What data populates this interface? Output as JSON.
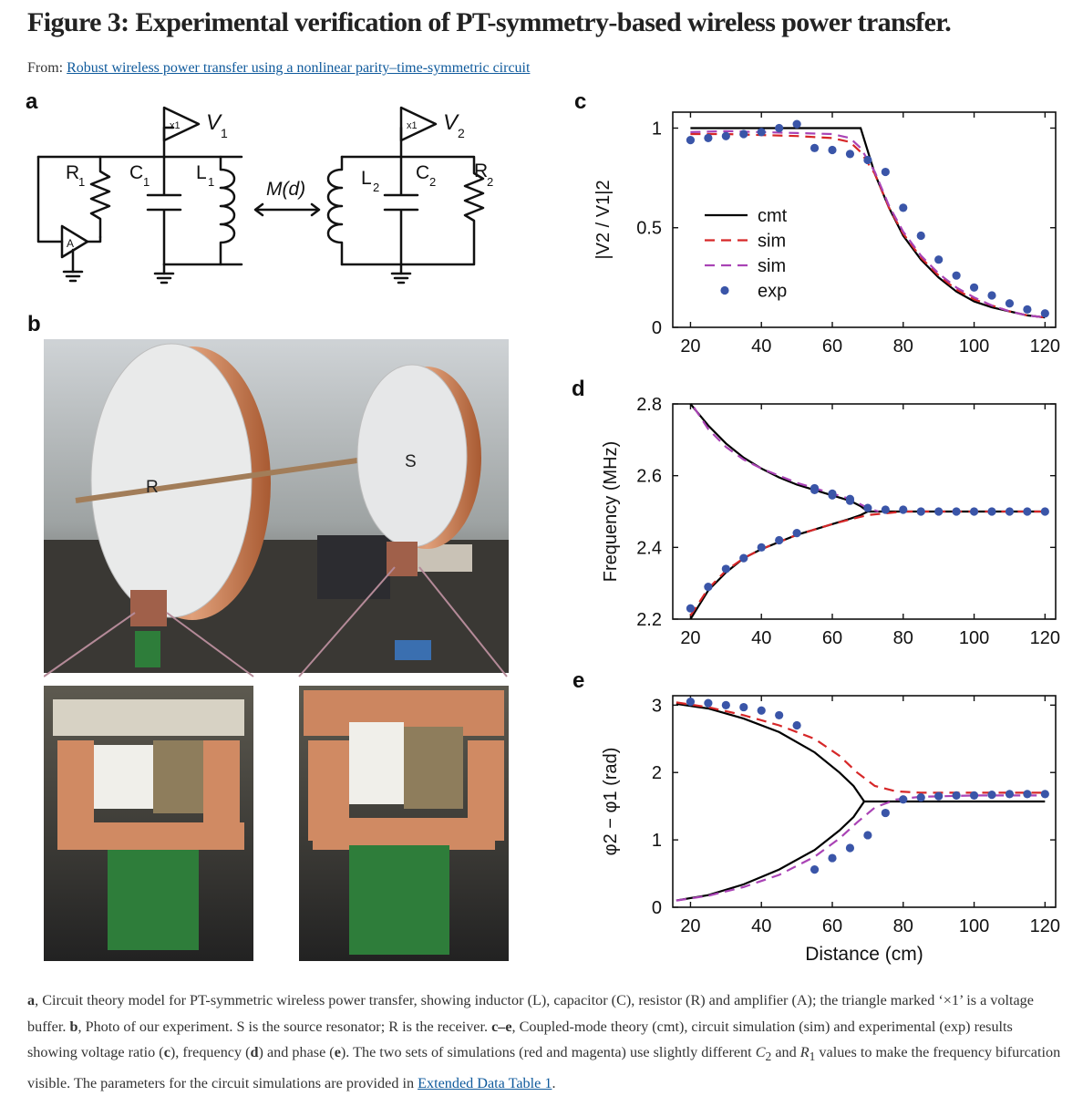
{
  "title": "Figure 3: Experimental verification of PT-symmetry-based wireless power transfer.",
  "from": {
    "prefix": "From:",
    "link": "Robust wireless power transfer using a nonlinear parity–time-symmetric circuit"
  },
  "panels": {
    "a": "a",
    "b": "b",
    "c": "c",
    "d": "d",
    "e": "e"
  },
  "circuit": {
    "v1": "V",
    "v1_sub": "1",
    "v2": "V",
    "v2_sub": "2",
    "buffer": "x1",
    "amp": "A",
    "r1": "R",
    "r1_sub": "1",
    "c1": "C",
    "c1_sub": "1",
    "l1": "L",
    "l1_sub": "1",
    "l2": "L",
    "l2_sub": "2",
    "c2": "C",
    "c2_sub": "2",
    "r2": "R",
    "r2_sub": "2",
    "coupling": "M(d)"
  },
  "photo": {
    "receiver_label": "R",
    "source_label": "S"
  },
  "chart_data": [
    {
      "panel": "c",
      "type": "line",
      "ylabel": "|V2 / V1|2",
      "xlim": [
        15,
        123
      ],
      "ylim": [
        0,
        1.08
      ],
      "xticks": [
        20,
        40,
        60,
        80,
        100,
        120
      ],
      "yticks": [
        0,
        0.5,
        1
      ],
      "ytick_labels": [
        "0",
        "0.5",
        "1"
      ],
      "legend": [
        "cmt",
        "sim",
        "sim",
        "exp"
      ],
      "legend_position": "center-left",
      "series": [
        {
          "name": "cmt",
          "style": "solid",
          "color": "#000000",
          "x": [
            20,
            30,
            40,
            50,
            60,
            68,
            72,
            76,
            80,
            85,
            90,
            95,
            100,
            105,
            110,
            115,
            120
          ],
          "y": [
            1,
            1,
            1,
            1,
            1,
            1,
            0.77,
            0.6,
            0.46,
            0.34,
            0.25,
            0.18,
            0.13,
            0.1,
            0.08,
            0.06,
            0.05
          ]
        },
        {
          "name": "sim",
          "style": "dashed",
          "color": "#d62728",
          "x": [
            20,
            30,
            40,
            50,
            60,
            65,
            68,
            72,
            76,
            80,
            85,
            90,
            95,
            100,
            105,
            110,
            115,
            120
          ],
          "y": [
            0.97,
            0.97,
            0.965,
            0.96,
            0.95,
            0.93,
            0.88,
            0.77,
            0.6,
            0.47,
            0.35,
            0.26,
            0.19,
            0.14,
            0.11,
            0.08,
            0.06,
            0.05
          ]
        },
        {
          "name": "sim",
          "style": "dashed",
          "color": "#a943b5",
          "x": [
            20,
            30,
            40,
            50,
            60,
            65,
            68,
            72,
            76,
            80,
            85,
            90,
            95,
            100,
            105,
            110,
            115,
            120
          ],
          "y": [
            0.98,
            0.985,
            0.98,
            0.975,
            0.97,
            0.95,
            0.9,
            0.78,
            0.61,
            0.48,
            0.36,
            0.27,
            0.2,
            0.15,
            0.11,
            0.08,
            0.06,
            0.05
          ]
        },
        {
          "name": "exp",
          "style": "dots",
          "color": "#3a55a8",
          "x": [
            20,
            25,
            30,
            35,
            40,
            45,
            50,
            55,
            60,
            65,
            70,
            75,
            80,
            85,
            90,
            95,
            100,
            105,
            110,
            115,
            120
          ],
          "y": [
            0.94,
            0.95,
            0.96,
            0.97,
            0.98,
            1.0,
            1.02,
            0.9,
            0.89,
            0.87,
            0.84,
            0.78,
            0.6,
            0.46,
            0.34,
            0.26,
            0.2,
            0.16,
            0.12,
            0.09,
            0.07
          ]
        }
      ]
    },
    {
      "panel": "d",
      "type": "line",
      "ylabel": "Frequency (MHz)",
      "xlim": [
        15,
        123
      ],
      "ylim": [
        2.2,
        2.8
      ],
      "xticks": [
        20,
        40,
        60,
        80,
        100,
        120
      ],
      "yticks": [
        2.2,
        2.4,
        2.6,
        2.8
      ],
      "ytick_labels": [
        "2.2",
        "2.4",
        "2.6",
        "2.8"
      ],
      "series": [
        {
          "name": "cmt-upper",
          "style": "solid",
          "color": "#000000",
          "x": [
            20,
            25,
            30,
            35,
            40,
            45,
            50,
            55,
            60,
            65,
            68,
            70
          ],
          "y": [
            2.8,
            2.74,
            2.69,
            2.65,
            2.62,
            2.595,
            2.575,
            2.56,
            2.545,
            2.53,
            2.515,
            2.5
          ]
        },
        {
          "name": "cmt-lower",
          "style": "solid",
          "color": "#000000",
          "x": [
            20,
            25,
            30,
            35,
            40,
            45,
            50,
            55,
            60,
            65,
            68,
            70,
            80,
            90,
            100,
            110,
            120
          ],
          "y": [
            2.2,
            2.28,
            2.33,
            2.37,
            2.395,
            2.415,
            2.435,
            2.45,
            2.465,
            2.48,
            2.49,
            2.5,
            2.5,
            2.5,
            2.5,
            2.5,
            2.5
          ]
        },
        {
          "name": "sim-upper",
          "style": "dashed",
          "color": "#a943b5",
          "x": [
            21,
            25,
            30,
            35,
            40,
            45,
            50,
            55,
            60,
            65,
            70,
            73
          ],
          "y": [
            2.79,
            2.73,
            2.68,
            2.645,
            2.62,
            2.6,
            2.58,
            2.565,
            2.55,
            2.535,
            2.51,
            2.5
          ]
        },
        {
          "name": "sim-lower",
          "style": "dashed",
          "color": "#d62728",
          "x": [
            20,
            25,
            30,
            35,
            40,
            45,
            50,
            55,
            60,
            65,
            70,
            75,
            80,
            90,
            100,
            110,
            120
          ],
          "y": [
            2.21,
            2.285,
            2.335,
            2.37,
            2.395,
            2.415,
            2.435,
            2.45,
            2.465,
            2.478,
            2.49,
            2.495,
            2.5,
            2.5,
            2.5,
            2.5,
            2.5
          ]
        },
        {
          "name": "exp",
          "style": "dots",
          "color": "#3a55a8",
          "x": [
            20,
            25,
            30,
            35,
            40,
            45,
            50,
            55,
            60,
            65,
            70,
            75,
            80,
            85,
            90,
            95,
            100,
            105,
            110,
            115,
            120,
            55,
            60,
            65
          ],
          "y": [
            2.23,
            2.29,
            2.34,
            2.37,
            2.4,
            2.42,
            2.44,
            2.56,
            2.545,
            2.53,
            2.51,
            2.505,
            2.505,
            2.5,
            2.5,
            2.5,
            2.5,
            2.5,
            2.5,
            2.5,
            2.5,
            2.565,
            2.55,
            2.535
          ]
        }
      ]
    },
    {
      "panel": "e",
      "type": "line",
      "ylabel": "φ2 − φ1 (rad)",
      "xlabel": "Distance (cm)",
      "xlim": [
        15,
        123
      ],
      "ylim": [
        0,
        3.14
      ],
      "xticks": [
        20,
        40,
        60,
        80,
        100,
        120
      ],
      "yticks": [
        0,
        1,
        2,
        3
      ],
      "ytick_labels": [
        "0",
        "1",
        "2",
        "3"
      ],
      "series": [
        {
          "name": "cmt-upper",
          "style": "solid",
          "color": "#000000",
          "x": [
            16,
            25,
            35,
            45,
            55,
            62,
            66,
            69
          ],
          "y": [
            3.02,
            2.95,
            2.8,
            2.6,
            2.3,
            2.0,
            1.8,
            1.57
          ]
        },
        {
          "name": "cmt-lower",
          "style": "solid",
          "color": "#000000",
          "x": [
            16,
            25,
            35,
            45,
            55,
            62,
            66,
            69,
            80,
            100,
            120
          ],
          "y": [
            0.1,
            0.18,
            0.34,
            0.56,
            0.85,
            1.14,
            1.34,
            1.57,
            1.57,
            1.57,
            1.57
          ]
        },
        {
          "name": "sim-upper",
          "style": "dashed",
          "color": "#d62728",
          "x": [
            16,
            25,
            35,
            45,
            55,
            62,
            67,
            72,
            78,
            85,
            100,
            120
          ],
          "y": [
            3.04,
            2.97,
            2.85,
            2.7,
            2.5,
            2.25,
            2.0,
            1.8,
            1.72,
            1.7,
            1.7,
            1.7
          ]
        },
        {
          "name": "sim-lower",
          "style": "dashed",
          "color": "#a943b5",
          "x": [
            16,
            25,
            35,
            45,
            55,
            62,
            67,
            72,
            78,
            85,
            100,
            120
          ],
          "y": [
            0.1,
            0.17,
            0.3,
            0.48,
            0.75,
            1.02,
            1.26,
            1.48,
            1.6,
            1.64,
            1.66,
            1.66
          ]
        },
        {
          "name": "exp",
          "style": "dots",
          "color": "#3a55a8",
          "x": [
            20,
            25,
            30,
            35,
            40,
            45,
            50,
            55,
            60,
            65,
            70,
            75,
            80,
            85,
            90,
            95,
            100,
            105,
            110,
            115,
            120
          ],
          "y": [
            3.05,
            3.03,
            3.0,
            2.97,
            2.92,
            2.85,
            2.7,
            0.56,
            0.73,
            0.88,
            1.07,
            1.4,
            1.6,
            1.63,
            1.65,
            1.66,
            1.66,
            1.67,
            1.68,
            1.68,
            1.68
          ]
        }
      ]
    }
  ],
  "caption": {
    "a_label": "a",
    "a_text": ", Circuit theory model for PT-symmetric wireless power transfer, showing inductor (L), capacitor (C), resistor (R) and amplifier (A); the triangle marked ‘×1’ is a voltage buffer. ",
    "b_label": "b",
    "b_text": ", Photo of our experiment. S is the source resonator; R is the receiver. ",
    "ce_label": "c–e",
    "ce_text": ", Coupled-mode theory (cmt), circuit simulation (sim) and experimental (exp) results showing voltage ratio (",
    "c_ref": "c",
    "mid1": "), frequency (",
    "d_ref": "d",
    "mid2": ") and phase (",
    "e_ref": "e",
    "mid3": "). The two sets of simulations (red and magenta) use slightly different ",
    "c2_var": "C",
    "c2_sub": "2",
    "and_word": " and ",
    "r1_var": "R",
    "r1_sub": "1",
    "tail": " values to make the frequency bifurcation visible. The parameters for the circuit simulations are provided in ",
    "link": "Extended Data Table 1",
    "end": "."
  }
}
